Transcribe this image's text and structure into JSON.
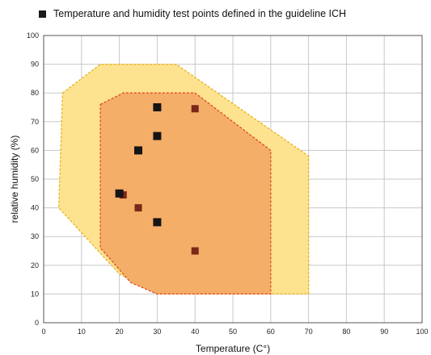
{
  "chart_data": {
    "type": "scatter",
    "legend": {
      "label": "Temperature and humidity test points defined in the guideline ICH",
      "placement": "top-left"
    },
    "xlabel": "Temperature (C°)",
    "ylabel": "relative humidity (%)",
    "xlim": [
      0,
      100
    ],
    "ylim": [
      0,
      100
    ],
    "xticks": [
      0,
      10,
      20,
      30,
      40,
      50,
      60,
      70,
      80,
      90,
      100
    ],
    "yticks": [
      0,
      10,
      20,
      30,
      40,
      50,
      60,
      70,
      80,
      90,
      100
    ],
    "grid": true,
    "regions": [
      {
        "fill": "#fde38f",
        "stroke": "#e7b21c",
        "dashed": true,
        "points": [
          [
            5,
            80
          ],
          [
            15,
            90
          ],
          [
            35,
            90
          ],
          [
            70,
            58
          ],
          [
            70,
            10
          ],
          [
            30,
            10
          ],
          [
            20,
            17
          ],
          [
            4,
            40
          ]
        ]
      },
      {
        "fill": "#f4ae67",
        "stroke": "#e04a24",
        "dashed": true,
        "points": [
          [
            15,
            76
          ],
          [
            21,
            80
          ],
          [
            40,
            80
          ],
          [
            60,
            60
          ],
          [
            60,
            10
          ],
          [
            30,
            10
          ],
          [
            23,
            14
          ],
          [
            15,
            26
          ]
        ]
      }
    ],
    "series": [
      {
        "color": "#7a2718",
        "points": [
          [
            21,
            44.5
          ],
          [
            25,
            40
          ],
          [
            30,
            65
          ],
          [
            40,
            74.5
          ],
          [
            40,
            25
          ]
        ]
      },
      {
        "color": "#151515",
        "points": [
          [
            20,
            45
          ],
          [
            25,
            60
          ],
          [
            30,
            75
          ],
          [
            30,
            65
          ],
          [
            30,
            35
          ]
        ]
      }
    ]
  }
}
